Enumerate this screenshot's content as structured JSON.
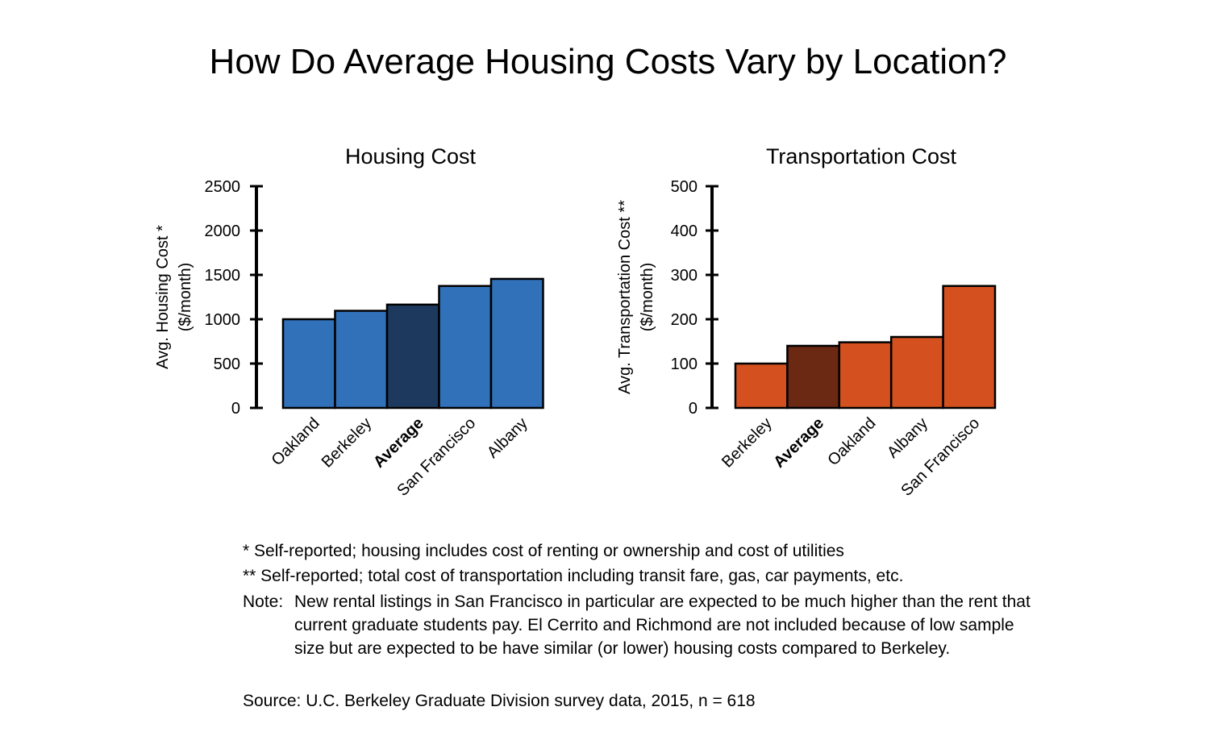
{
  "title": "How Do Average Housing Costs Vary by Location?",
  "chart_data": [
    {
      "type": "bar",
      "title": "Housing Cost",
      "ylabel": "Avg. Housing Cost *",
      "ylabel_unit": "($/month)",
      "ylim": [
        0,
        2500
      ],
      "yticks": [
        0,
        500,
        1000,
        1500,
        2000,
        2500
      ],
      "categories": [
        "Oakland",
        "Berkeley",
        "Average",
        "San Francisco",
        "Albany"
      ],
      "values": [
        1000,
        1095,
        1165,
        1375,
        1455
      ],
      "highlight": "Average",
      "colors": {
        "bar": "#3171b9",
        "highlight": "#1d3a5e"
      }
    },
    {
      "type": "bar",
      "title": "Transportation Cost",
      "ylabel": "Avg. Transportation Cost **",
      "ylabel_unit": "($/month)",
      "ylim": [
        0,
        500
      ],
      "yticks": [
        0,
        100,
        200,
        300,
        400,
        500
      ],
      "categories": [
        "Berkeley",
        "Average",
        "Oakland",
        "Albany",
        "San Francisco"
      ],
      "values": [
        100,
        140,
        148,
        160,
        275
      ],
      "highlight": "Average",
      "colors": {
        "bar": "#d4501f",
        "highlight": "#6b2813"
      }
    }
  ],
  "notes": {
    "star": "*  Self-reported; housing includes cost of renting or ownership and cost of utilities",
    "double_star": "** Self-reported; total cost of transportation including transit fare, gas, car payments, etc.",
    "note_label": "Note:",
    "note_text": "New rental listings in San Francisco in particular are expected to be much higher than the rent that current graduate students pay.  El Cerrito and Richmond are not included because of low sample size but are expected to be have similar (or lower) housing costs compared to Berkeley.",
    "source": "Source: U.C. Berkeley Graduate Division survey data, 2015, n = 618"
  }
}
